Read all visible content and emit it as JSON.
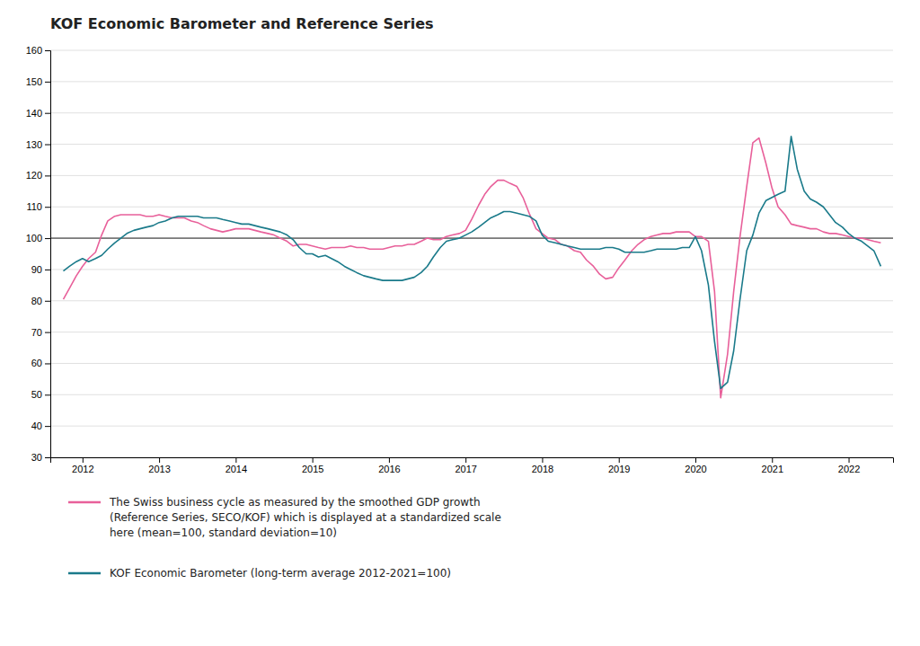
{
  "chart_data": {
    "type": "line",
    "title": "KOF Economic Barometer and Reference Series",
    "xlim": [
      2011.58,
      2022.58
    ],
    "xticks": [
      2012,
      2013,
      2014,
      2015,
      2016,
      2017,
      2018,
      2019,
      2020,
      2021,
      2022
    ],
    "ylim": [
      30,
      160
    ],
    "yticks": [
      30,
      40,
      50,
      60,
      70,
      80,
      90,
      100,
      110,
      120,
      130,
      140,
      150,
      160
    ],
    "grid": true,
    "legend": "bottom",
    "hline": {
      "y": 100,
      "color": "#222222"
    },
    "x": [
      2011.75,
      2011.83,
      2011.92,
      2012.0,
      2012.08,
      2012.17,
      2012.25,
      2012.33,
      2012.42,
      2012.5,
      2012.58,
      2012.67,
      2012.75,
      2012.83,
      2012.92,
      2013.0,
      2013.08,
      2013.17,
      2013.25,
      2013.33,
      2013.42,
      2013.5,
      2013.58,
      2013.67,
      2013.75,
      2013.83,
      2013.92,
      2014.0,
      2014.08,
      2014.17,
      2014.25,
      2014.33,
      2014.42,
      2014.5,
      2014.58,
      2014.67,
      2014.75,
      2014.83,
      2014.92,
      2015.0,
      2015.08,
      2015.17,
      2015.25,
      2015.33,
      2015.42,
      2015.5,
      2015.58,
      2015.67,
      2015.75,
      2015.83,
      2015.92,
      2016.0,
      2016.08,
      2016.17,
      2016.25,
      2016.33,
      2016.42,
      2016.5,
      2016.58,
      2016.67,
      2016.75,
      2016.83,
      2016.92,
      2017.0,
      2017.08,
      2017.17,
      2017.25,
      2017.33,
      2017.42,
      2017.5,
      2017.58,
      2017.67,
      2017.75,
      2017.83,
      2017.92,
      2018.0,
      2018.08,
      2018.17,
      2018.25,
      2018.33,
      2018.42,
      2018.5,
      2018.58,
      2018.67,
      2018.75,
      2018.83,
      2018.92,
      2019.0,
      2019.08,
      2019.17,
      2019.25,
      2019.33,
      2019.42,
      2019.5,
      2019.58,
      2019.67,
      2019.75,
      2019.83,
      2019.92,
      2020.0,
      2020.08,
      2020.17,
      2020.25,
      2020.33,
      2020.42,
      2020.5,
      2020.58,
      2020.67,
      2020.75,
      2020.83,
      2020.92,
      2021.0,
      2021.08,
      2021.17,
      2021.25,
      2021.33,
      2021.42,
      2021.5,
      2021.58,
      2021.67,
      2021.75,
      2021.83,
      2021.92,
      2022.0,
      2022.08,
      2022.17,
      2022.25,
      2022.33,
      2022.42
    ],
    "series": [
      {
        "name": "The Swiss business cycle as measured by the smoothed GDP growth\n(Reference Series, SECO/KOF) which is displayed at a standardized scale\nhere (mean=100, standard deviation=10)",
        "color": "#E8609A",
        "values": [
          80.5,
          84.0,
          88.0,
          91.0,
          93.5,
          95.5,
          101.0,
          105.5,
          107.0,
          107.5,
          107.5,
          107.5,
          107.5,
          107.0,
          107.0,
          107.5,
          107.0,
          106.5,
          106.5,
          106.5,
          105.5,
          105.0,
          104.0,
          103.0,
          102.5,
          102.0,
          102.5,
          103.0,
          103.0,
          103.0,
          102.5,
          102.0,
          101.5,
          101.0,
          100.0,
          99.0,
          97.5,
          98.0,
          98.0,
          97.5,
          97.0,
          96.5,
          97.0,
          97.0,
          97.0,
          97.5,
          97.0,
          97.0,
          96.5,
          96.5,
          96.5,
          97.0,
          97.5,
          97.5,
          98.0,
          98.0,
          99.0,
          100.0,
          99.5,
          99.5,
          100.5,
          101.0,
          101.5,
          102.5,
          106.0,
          110.5,
          114.0,
          116.5,
          118.5,
          118.5,
          117.5,
          116.5,
          113.0,
          108.0,
          103.0,
          101.5,
          100.0,
          99.5,
          98.0,
          97.5,
          96.0,
          95.5,
          93.0,
          91.0,
          88.5,
          87.0,
          87.5,
          90.5,
          93.0,
          96.0,
          98.0,
          99.5,
          100.5,
          101.0,
          101.5,
          101.5,
          102.0,
          102.0,
          102.0,
          100.5,
          100.5,
          99.0,
          83.0,
          49.0,
          63.0,
          83.0,
          100.0,
          116.5,
          130.5,
          132.0,
          124.0,
          116.0,
          110.0,
          107.5,
          104.5,
          104.0,
          103.5,
          103.0,
          103.0,
          102.0,
          101.5,
          101.5,
          101.0,
          100.5,
          100.0,
          100.0,
          99.5,
          99.0,
          98.5
        ]
      },
      {
        "name": "KOF Economic Barometer (long-term average 2012-2021=100)",
        "color": "#1A7A8A",
        "values": [
          89.5,
          91.0,
          92.5,
          93.5,
          92.5,
          93.5,
          94.5,
          96.5,
          98.5,
          100.0,
          101.5,
          102.5,
          103.0,
          103.5,
          104.0,
          105.0,
          105.5,
          106.5,
          107.0,
          107.0,
          107.0,
          107.0,
          106.5,
          106.5,
          106.5,
          106.0,
          105.5,
          105.0,
          104.5,
          104.5,
          104.0,
          103.5,
          103.0,
          102.5,
          102.0,
          101.0,
          99.5,
          97.0,
          95.0,
          95.0,
          94.0,
          94.5,
          93.5,
          92.5,
          91.0,
          90.0,
          89.0,
          88.0,
          87.5,
          87.0,
          86.5,
          86.5,
          86.5,
          86.5,
          87.0,
          87.5,
          89.0,
          91.0,
          94.0,
          97.0,
          99.0,
          99.5,
          100.0,
          101.0,
          102.0,
          103.5,
          105.0,
          106.5,
          107.5,
          108.5,
          108.5,
          108.0,
          107.5,
          107.0,
          105.5,
          101.0,
          99.0,
          98.5,
          98.0,
          97.5,
          97.0,
          96.5,
          96.5,
          96.5,
          96.5,
          97.0,
          97.0,
          96.5,
          95.5,
          95.5,
          95.5,
          95.5,
          96.0,
          96.5,
          96.5,
          96.5,
          96.5,
          97.0,
          97.0,
          100.5,
          96.0,
          85.0,
          67.0,
          52.0,
          54.0,
          64.0,
          80.0,
          96.0,
          101.0,
          108.0,
          112.0,
          113.0,
          114.0,
          115.0,
          132.5,
          122.0,
          115.0,
          112.5,
          111.5,
          110.0,
          107.5,
          105.0,
          103.5,
          101.5,
          100.0,
          99.0,
          97.5,
          96.0,
          91.0
        ]
      }
    ]
  }
}
